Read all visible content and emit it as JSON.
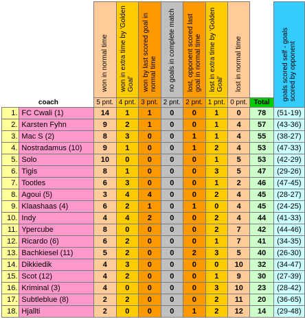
{
  "headers": {
    "col_won_normal": "won in normal time",
    "col_won_extra": "won in extra time by 'Golden Goal'",
    "col_won_last": "won by last scored goal in normal time",
    "col_no_goals": "no goals in complete match",
    "col_lost_last": "lost, opponent scored last goal in normal time",
    "col_lost_extra": "lost in extra time by 'Golden Goal'",
    "col_lost_normal": "lost in normal time",
    "col_goals": "goals scored self - goals scored by opponent",
    "coach": "coach",
    "total": "Total"
  },
  "points": {
    "p5": "5 pnt.",
    "p4": "4 pnt.",
    "p3": "3 pnt.",
    "p2g": "2 pnt.",
    "p2": "2 pnt.",
    "p1": "1 pnt.",
    "p0": "0 pnt."
  },
  "rows": [
    {
      "rank": "1.",
      "coach": "FC Cwali (1)",
      "won_normal": "14",
      "won_extra": "1",
      "won_last": "1",
      "no_goals": "0",
      "lost_last": "0",
      "lost_extra": "1",
      "lost_normal": "0",
      "total": "78",
      "goals": "(51-19)"
    },
    {
      "rank": "2.",
      "coach": "Karsten Fyhn",
      "won_normal": "9",
      "won_extra": "2",
      "won_last": "1",
      "no_goals": "0",
      "lost_last": "0",
      "lost_extra": "1",
      "lost_normal": "4",
      "total": "57",
      "goals": "(43-36)"
    },
    {
      "rank": "3.",
      "coach": "Mac S (2)",
      "won_normal": "8",
      "won_extra": "3",
      "won_last": "0",
      "no_goals": "0",
      "lost_last": "1",
      "lost_extra": "1",
      "lost_normal": "4",
      "total": "55",
      "goals": "(38-27)"
    },
    {
      "rank": "4.",
      "coach": "Nostradamus (10)",
      "won_normal": "9",
      "won_extra": "1",
      "won_last": "0",
      "no_goals": "0",
      "lost_last": "1",
      "lost_extra": "2",
      "lost_normal": "4",
      "total": "53",
      "goals": "(47-33)"
    },
    {
      "rank": "5.",
      "coach": "Solo",
      "won_normal": "10",
      "won_extra": "0",
      "won_last": "0",
      "no_goals": "0",
      "lost_last": "0",
      "lost_extra": "1",
      "lost_normal": "5",
      "total": "53",
      "goals": "(42-29)"
    },
    {
      "rank": "6.",
      "coach": "Tigis",
      "won_normal": "8",
      "won_extra": "1",
      "won_last": "0",
      "no_goals": "0",
      "lost_last": "0",
      "lost_extra": "3",
      "lost_normal": "5",
      "total": "47",
      "goals": "(29-26)"
    },
    {
      "rank": "7.",
      "coach": "Tootles",
      "won_normal": "6",
      "won_extra": "3",
      "won_last": "0",
      "no_goals": "0",
      "lost_last": "0",
      "lost_extra": "1",
      "lost_normal": "2",
      "total": "46",
      "goals": "(47-45)"
    },
    {
      "rank": "8.",
      "coach": "Agoui (5)",
      "won_normal": "3",
      "won_extra": "4",
      "won_last": "4",
      "no_goals": "0",
      "lost_last": "0",
      "lost_extra": "2",
      "lost_normal": "4",
      "total": "45",
      "goals": "(28-27)"
    },
    {
      "rank": "9.",
      "coach": "Klaashaas (4)",
      "won_normal": "6",
      "won_extra": "2",
      "won_last": "1",
      "no_goals": "0",
      "lost_last": "1",
      "lost_extra": "0",
      "lost_normal": "4",
      "total": "45",
      "goals": "(24-25)"
    },
    {
      "rank": "10.",
      "coach": "Indy",
      "won_normal": "4",
      "won_extra": "4",
      "won_last": "2",
      "no_goals": "0",
      "lost_last": "0",
      "lost_extra": "2",
      "lost_normal": "4",
      "total": "44",
      "goals": "(41-33)"
    },
    {
      "rank": "11.",
      "coach": "Ypercube",
      "won_normal": "8",
      "won_extra": "0",
      "won_last": "0",
      "no_goals": "0",
      "lost_last": "0",
      "lost_extra": "2",
      "lost_normal": "7",
      "total": "42",
      "goals": "(44-46)"
    },
    {
      "rank": "12.",
      "coach": "Ricardo (6)",
      "won_normal": "6",
      "won_extra": "2",
      "won_last": "0",
      "no_goals": "0",
      "lost_last": "0",
      "lost_extra": "1",
      "lost_normal": "7",
      "total": "41",
      "goals": "(34-35)"
    },
    {
      "rank": "13.",
      "coach": "Bachkiesel (11)",
      "won_normal": "5",
      "won_extra": "2",
      "won_last": "0",
      "no_goals": "0",
      "lost_last": "2",
      "lost_extra": "3",
      "lost_normal": "5",
      "total": "40",
      "goals": "(26-30)"
    },
    {
      "rank": "14.",
      "coach": "Dikkiedik",
      "won_normal": "4",
      "won_extra": "3",
      "won_last": "0",
      "no_goals": "0",
      "lost_last": "0",
      "lost_extra": "0",
      "lost_normal": "10",
      "total": "32",
      "goals": "(34-47)"
    },
    {
      "rank": "15.",
      "coach": "Scot (12)",
      "won_normal": "4",
      "won_extra": "2",
      "won_last": "0",
      "no_goals": "0",
      "lost_last": "0",
      "lost_extra": "1",
      "lost_normal": "9",
      "total": "30",
      "goals": "(27-39)"
    },
    {
      "rank": "16.",
      "coach": "Kriminal (3)",
      "won_normal": "4",
      "won_extra": "0",
      "won_last": "0",
      "no_goals": "0",
      "lost_last": "0",
      "lost_extra": "3",
      "lost_normal": "10",
      "total": "23",
      "goals": "(28-42)"
    },
    {
      "rank": "17.",
      "coach": "Subtleblue (8)",
      "won_normal": "2",
      "won_extra": "2",
      "won_last": "0",
      "no_goals": "0",
      "lost_last": "0",
      "lost_extra": "2",
      "lost_normal": "11",
      "total": "20",
      "goals": "(36-65)"
    },
    {
      "rank": "18.",
      "coach": "Hjallti",
      "won_normal": "2",
      "won_extra": "0",
      "won_last": "0",
      "no_goals": "0",
      "lost_last": "1",
      "lost_extra": "2",
      "lost_normal": "12",
      "total": "14",
      "goals": "(29-48)"
    }
  ]
}
